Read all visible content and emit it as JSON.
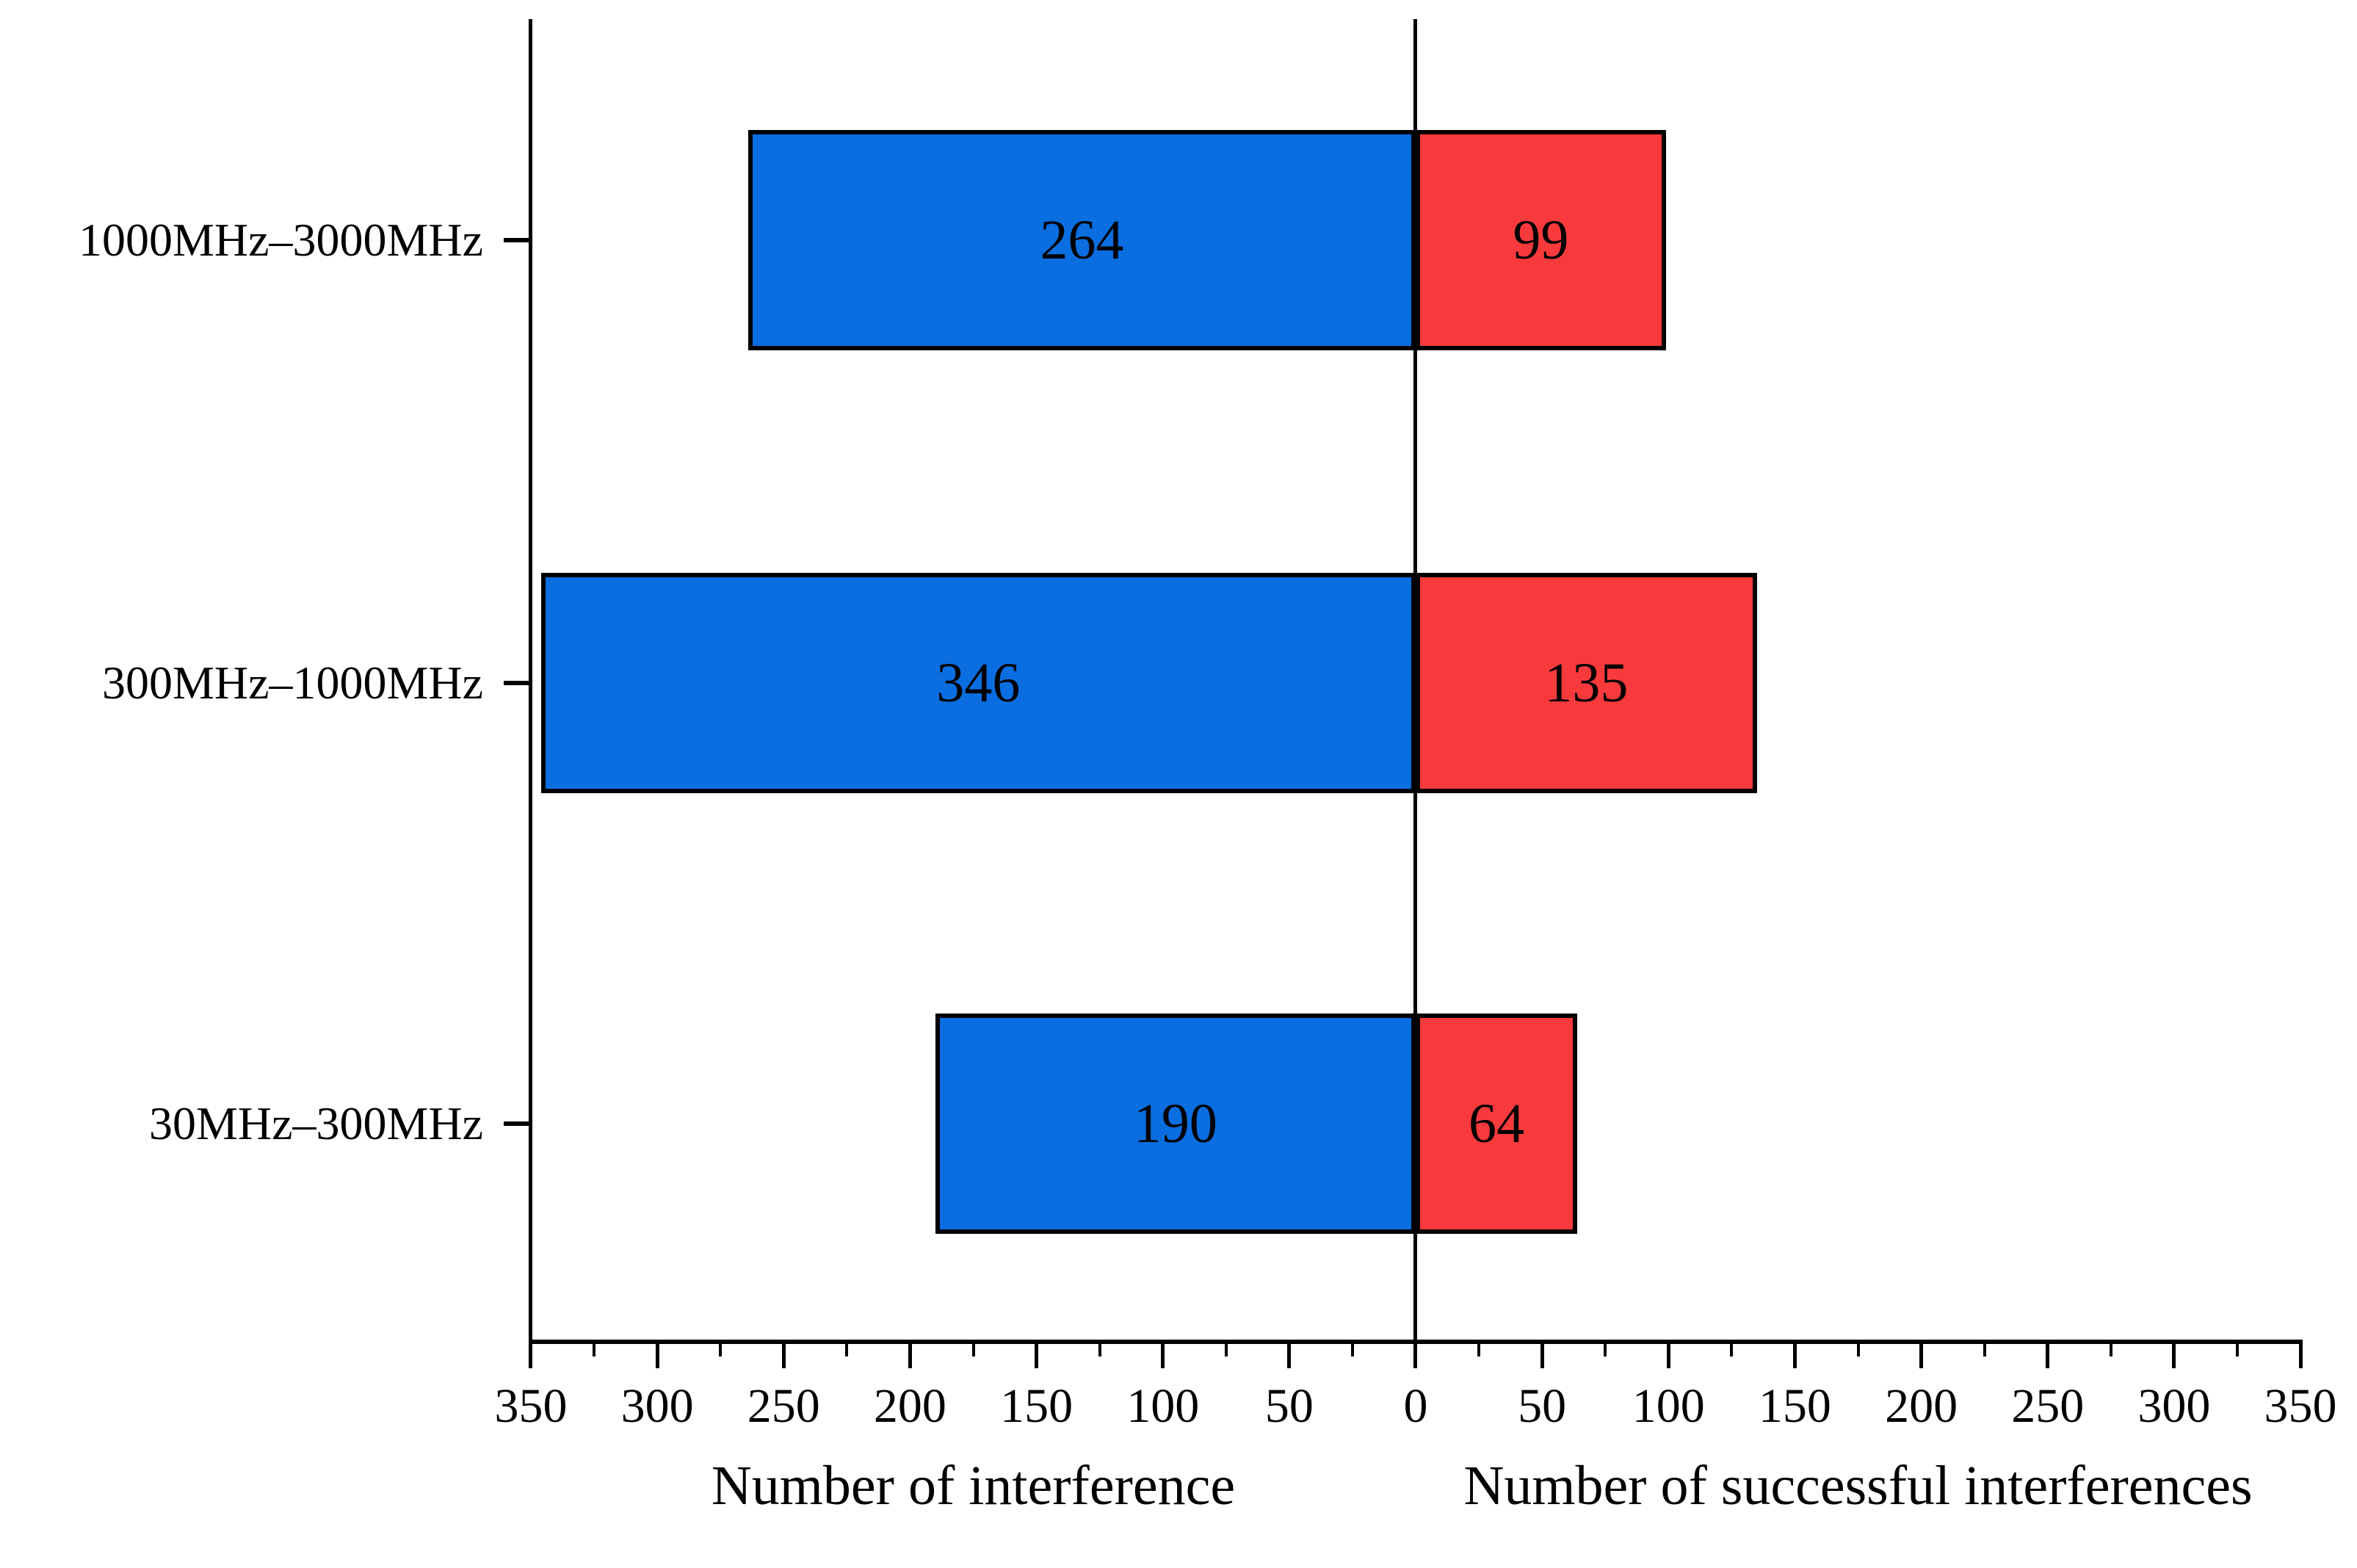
{
  "chart_data": {
    "type": "bar",
    "orientation": "horizontal-diverging",
    "title": "",
    "categories": [
      "1000MHz–3000MHz",
      "300MHz–1000MHz",
      "30MHz–300MHz"
    ],
    "series": [
      {
        "name": "Number of interference",
        "side": "left",
        "color": "#0A6DE0",
        "values": [
          264,
          346,
          190
        ]
      },
      {
        "name": "Number of successful interferences",
        "side": "right",
        "color": "#F93A3C",
        "values": [
          99,
          135,
          64
        ]
      }
    ],
    "xlabel_left": "Number of interference",
    "xlabel_right": "Number of successful interferences",
    "axis": {
      "max": 350,
      "major_tick_step": 50,
      "minor_tick_step": 25,
      "tick_labels": [
        "350",
        "300",
        "250",
        "200",
        "150",
        "100",
        "50",
        "0",
        "50",
        "100",
        "150",
        "200",
        "250",
        "300",
        "350"
      ],
      "grid": false
    },
    "bar_border_color": "#000000",
    "axis_color": "#000000",
    "background": "#FFFFFF",
    "legend_position": "none"
  }
}
